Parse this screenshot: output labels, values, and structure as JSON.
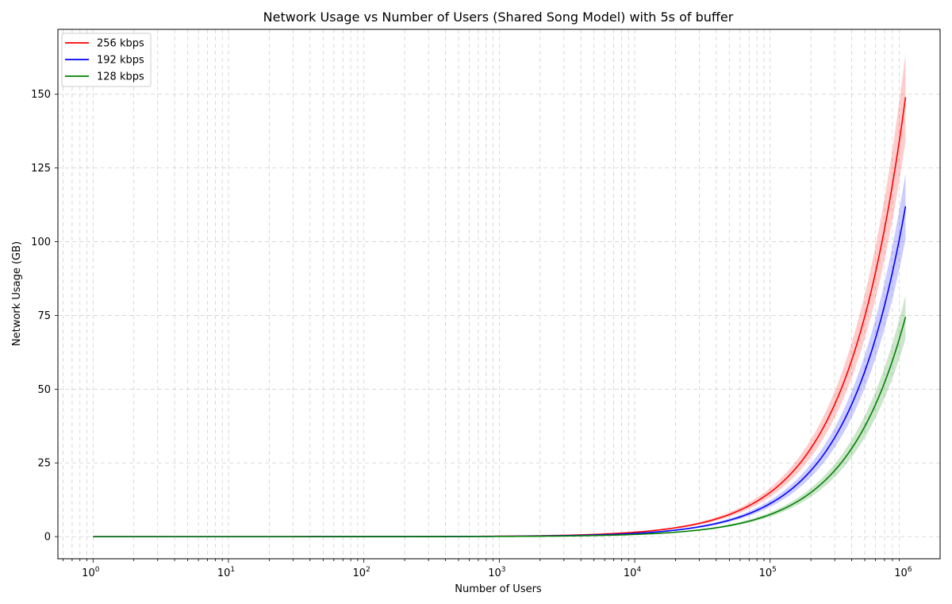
{
  "chart_data": {
    "type": "line",
    "title": "Network Usage vs Number of Users (Shared Song Model) with 5s of buffer",
    "xlabel": "Number of Users",
    "ylabel": "Network Usage (GB)",
    "xscale": "log",
    "xlim": [
      0.55,
      1800000
    ],
    "ylim": [
      -7.5,
      172
    ],
    "xticks": [
      {
        "value": 1,
        "base": "10",
        "exp": "0"
      },
      {
        "value": 10,
        "base": "10",
        "exp": "1"
      },
      {
        "value": 100,
        "base": "10",
        "exp": "2"
      },
      {
        "value": 1000,
        "base": "10",
        "exp": "3"
      },
      {
        "value": 10000,
        "base": "10",
        "exp": "4"
      },
      {
        "value": 100000,
        "base": "10",
        "exp": "5"
      },
      {
        "value": 1000000,
        "base": "10",
        "exp": "6"
      }
    ],
    "yticks": [
      0,
      25,
      50,
      75,
      100,
      125,
      150
    ],
    "grid": true,
    "legend_position": "top-left",
    "series": [
      {
        "name": "256 kbps",
        "color": "#ff0000",
        "x": [
          1,
          1000,
          10000,
          100000,
          1000000
        ],
        "y": [
          0.00015,
          0.15,
          1.5,
          15,
          149
        ],
        "band": [
          0.9,
          1.1
        ]
      },
      {
        "name": "192 kbps",
        "color": "#0000ff",
        "x": [
          1,
          1000,
          10000,
          100000,
          1000000
        ],
        "y": [
          0.00011,
          0.11,
          1.1,
          11.2,
          112
        ],
        "band": [
          0.9,
          1.1
        ]
      },
      {
        "name": "128 kbps",
        "color": "#008000",
        "x": [
          1,
          1000,
          10000,
          100000,
          1000000
        ],
        "y": [
          7.5e-05,
          0.075,
          0.75,
          7.5,
          74.5
        ],
        "band": [
          0.9,
          1.1
        ]
      }
    ]
  }
}
